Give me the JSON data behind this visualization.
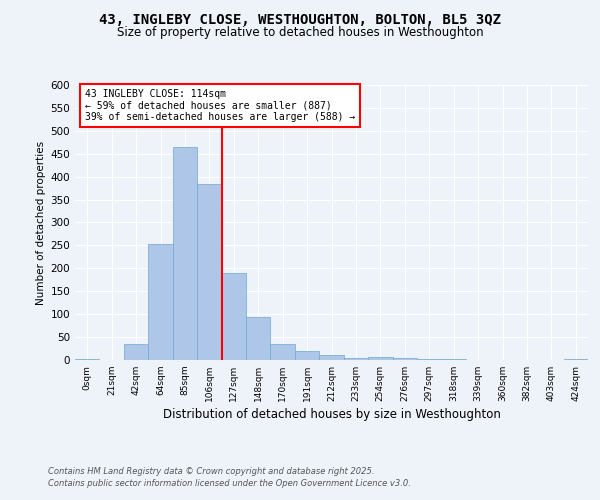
{
  "title": "43, INGLEBY CLOSE, WESTHOUGHTON, BOLTON, BL5 3QZ",
  "subtitle": "Size of property relative to detached houses in Westhoughton",
  "xlabel": "Distribution of detached houses by size in Westhoughton",
  "ylabel": "Number of detached properties",
  "bin_labels": [
    "0sqm",
    "21sqm",
    "42sqm",
    "64sqm",
    "85sqm",
    "106sqm",
    "127sqm",
    "148sqm",
    "170sqm",
    "191sqm",
    "212sqm",
    "233sqm",
    "254sqm",
    "276sqm",
    "297sqm",
    "318sqm",
    "339sqm",
    "360sqm",
    "382sqm",
    "403sqm",
    "424sqm"
  ],
  "bin_values": [
    3,
    0,
    35,
    252,
    465,
    383,
    190,
    93,
    35,
    20,
    12,
    5,
    6,
    4,
    2,
    3,
    1,
    0,
    1,
    0,
    3
  ],
  "bar_color": "#aec6e8",
  "bar_edge_color": "#6fa8d6",
  "vline_x": 5.5,
  "vline_color": "red",
  "annotation_text": "43 INGLEBY CLOSE: 114sqm\n← 59% of detached houses are smaller (887)\n39% of semi-detached houses are larger (588) →",
  "annotation_box_color": "white",
  "annotation_box_edge": "red",
  "ylim": [
    0,
    600
  ],
  "yticks": [
    0,
    50,
    100,
    150,
    200,
    250,
    300,
    350,
    400,
    450,
    500,
    550,
    600
  ],
  "footer_line1": "Contains HM Land Registry data © Crown copyright and database right 2025.",
  "footer_line2": "Contains public sector information licensed under the Open Government Licence v3.0.",
  "bg_color": "#eef3fa",
  "plot_bg_color": "#eef3fa"
}
